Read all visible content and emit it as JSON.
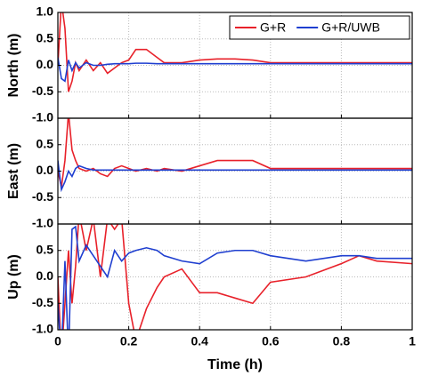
{
  "chart_data": [
    {
      "type": "line",
      "ylabel": "North (m)",
      "x": [
        0,
        0.01,
        0.02,
        0.03,
        0.04,
        0.05,
        0.06,
        0.08,
        0.1,
        0.12,
        0.14,
        0.16,
        0.18,
        0.2,
        0.22,
        0.25,
        0.28,
        0.3,
        0.35,
        0.4,
        0.45,
        0.5,
        0.55,
        0.6,
        0.7,
        0.8,
        0.85,
        0.9,
        1
      ],
      "series": [
        {
          "name": "G+R",
          "color": "#e8212a",
          "values": [
            0.0,
            1.2,
            0.7,
            -0.5,
            -0.3,
            0.05,
            -0.1,
            0.1,
            -0.1,
            0.05,
            -0.15,
            -0.05,
            0.05,
            0.1,
            0.3,
            0.3,
            0.15,
            0.05,
            0.05,
            0.1,
            0.12,
            0.12,
            0.1,
            0.05,
            0.05,
            0.05,
            0.05,
            0.05,
            0.05
          ]
        },
        {
          "name": "G+R/UWB",
          "color": "#1f3fd0",
          "values": [
            0.15,
            -0.25,
            -0.3,
            0.1,
            -0.1,
            0.05,
            -0.05,
            0.05,
            0.0,
            0.0,
            0.02,
            0.03,
            0.03,
            0.03,
            0.04,
            0.04,
            0.03,
            0.03,
            0.03,
            0.03,
            0.03,
            0.03,
            0.03,
            0.03,
            0.03,
            0.03,
            0.03,
            0.03,
            0.03
          ]
        }
      ],
      "xlim": [
        0,
        1
      ],
      "ylim": [
        -1,
        1
      ],
      "yticks": [
        {
          "value": 1,
          "label": "1.0"
        },
        {
          "value": 0.5,
          "label": "0.5"
        },
        {
          "value": 0,
          "label": "0.0"
        },
        {
          "value": -0.5,
          "label": "-0.5"
        },
        {
          "value": -1,
          "label": "-1.0"
        }
      ],
      "grid": true,
      "legend": "upper right"
    },
    {
      "type": "line",
      "ylabel": "East (m)",
      "x": [
        0,
        0.01,
        0.02,
        0.03,
        0.04,
        0.05,
        0.06,
        0.08,
        0.1,
        0.12,
        0.14,
        0.16,
        0.18,
        0.2,
        0.22,
        0.25,
        0.28,
        0.3,
        0.35,
        0.4,
        0.45,
        0.5,
        0.55,
        0.6,
        0.7,
        0.8,
        0.85,
        0.9,
        1
      ],
      "series": [
        {
          "color": "#e8212a",
          "values": [
            0.0,
            -0.3,
            0.2,
            1.1,
            0.4,
            0.2,
            0.05,
            0.0,
            0.05,
            -0.05,
            -0.1,
            0.05,
            0.1,
            0.05,
            0.0,
            0.05,
            0.0,
            0.05,
            0.0,
            0.1,
            0.2,
            0.2,
            0.2,
            0.05,
            0.05,
            0.05,
            0.05,
            0.05,
            0.05
          ]
        },
        {
          "color": "#1f3fd0",
          "values": [
            0.2,
            -0.35,
            -0.2,
            0.0,
            -0.1,
            0.05,
            0.1,
            0.05,
            0.02,
            0.02,
            0.02,
            0.02,
            0.02,
            0.02,
            0.02,
            0.02,
            0.02,
            0.02,
            0.02,
            0.02,
            0.02,
            0.02,
            0.02,
            0.02,
            0.02,
            0.02,
            0.02,
            0.02,
            0.02
          ]
        }
      ],
      "xlim": [
        0,
        1
      ],
      "ylim": [
        -1,
        1
      ],
      "yticks": [
        {
          "value": 0.5,
          "label": "0.5"
        },
        {
          "value": 0,
          "label": "0.0"
        },
        {
          "value": -0.5,
          "label": "-0.5"
        },
        {
          "value": -1,
          "label": "-1.0"
        }
      ],
      "grid": true
    },
    {
      "type": "line",
      "ylabel": "Up (m)",
      "xlabel": "Time (h)",
      "x": [
        0,
        0.01,
        0.02,
        0.03,
        0.04,
        0.05,
        0.06,
        0.08,
        0.1,
        0.12,
        0.14,
        0.16,
        0.18,
        0.2,
        0.22,
        0.25,
        0.28,
        0.3,
        0.35,
        0.4,
        0.45,
        0.5,
        0.55,
        0.6,
        0.7,
        0.8,
        0.85,
        0.9,
        1
      ],
      "series": [
        {
          "color": "#e8212a",
          "values": [
            0.0,
            -1.5,
            -0.5,
            0.5,
            -0.5,
            0.2,
            1.2,
            0.5,
            1.1,
            0.0,
            1.1,
            0.9,
            1.1,
            -0.5,
            -1.2,
            -0.6,
            -0.2,
            0.0,
            0.15,
            -0.3,
            -0.3,
            -0.4,
            -0.5,
            -0.1,
            0.0,
            0.25,
            0.4,
            0.3,
            0.25
          ]
        },
        {
          "color": "#1f3fd0",
          "values": [
            -0.5,
            -1.5,
            0.3,
            -1.5,
            0.9,
            0.95,
            0.3,
            0.6,
            0.4,
            0.2,
            0.0,
            0.5,
            0.3,
            0.45,
            0.5,
            0.55,
            0.5,
            0.4,
            0.3,
            0.25,
            0.45,
            0.5,
            0.5,
            0.4,
            0.3,
            0.4,
            0.4,
            0.35,
            0.35
          ]
        }
      ],
      "xlim": [
        0,
        1
      ],
      "ylim": [
        -1,
        1
      ],
      "xticks": [
        0,
        0.2,
        0.4,
        0.6,
        0.8,
        1
      ],
      "yticks": [
        {
          "value": 0.5,
          "label": "0.5"
        },
        {
          "value": 0,
          "label": "0.0"
        },
        {
          "value": -0.5,
          "label": "-0.5"
        },
        {
          "value": -1,
          "label": "-1.0"
        }
      ],
      "grid": true
    }
  ]
}
